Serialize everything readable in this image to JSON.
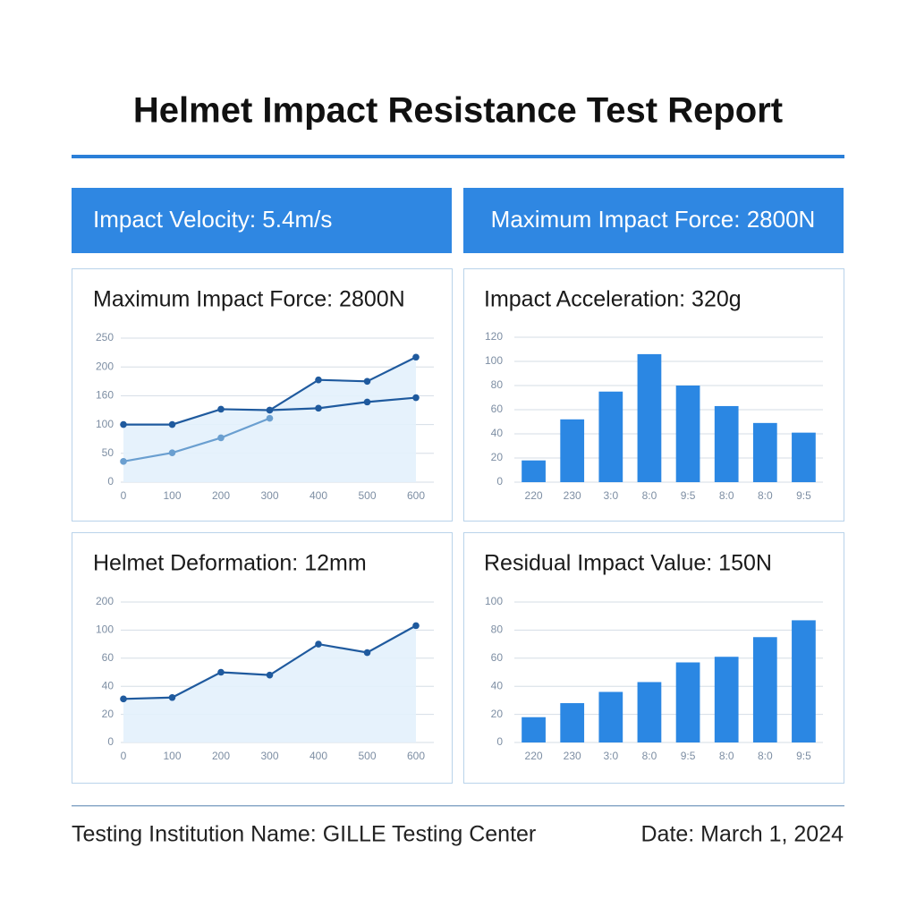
{
  "title": "Helmet Impact Resistance Test Report",
  "banners": [
    "Impact Velocity:  5.4m/s",
    "Maximum Impact Force: 2800N"
  ],
  "chart_data": [
    {
      "type": "line",
      "title": "Maximum Impact Force:  2800N",
      "x": [
        0,
        100,
        200,
        300,
        400,
        500,
        600
      ],
      "xlim": [
        0,
        600
      ],
      "xticks": [
        0,
        100,
        200,
        300,
        400,
        500,
        600
      ],
      "ylim": [
        0,
        250
      ],
      "yticks": [
        0,
        50,
        100,
        160,
        200,
        250
      ],
      "yscale": "tick-spaced",
      "grid": true,
      "series": [
        {
          "color": "#1f5a9e",
          "fill": "#e3f1fc",
          "values": [
            100,
            100,
            132,
            130,
            182,
            180,
            217
          ]
        },
        {
          "color": "#6a9fd0",
          "values": [
            36,
            51,
            77,
            113,
            null,
            null,
            null
          ]
        },
        {
          "color": "#1f5a9e",
          "values": [
            null,
            null,
            null,
            130,
            134,
            147,
            156
          ]
        }
      ]
    },
    {
      "type": "bar",
      "title": "Impact Acceleration:  320g",
      "categories": [
        "220",
        "230",
        "3:0",
        "8:0",
        "9:5",
        "8:0",
        "8:0",
        "9:5"
      ],
      "values": [
        18,
        52,
        75,
        106,
        80,
        63,
        49,
        41
      ],
      "color": "#2b87e3",
      "ylim": [
        0,
        120
      ],
      "yticks": [
        0,
        20,
        40,
        60,
        80,
        100,
        120
      ],
      "grid": true
    },
    {
      "type": "line",
      "title": "Helmet Deformation:  12mm",
      "x": [
        0,
        100,
        200,
        300,
        400,
        500,
        600
      ],
      "xlim": [
        0,
        600
      ],
      "xticks": [
        0,
        100,
        200,
        300,
        400,
        500,
        600
      ],
      "ylim": [
        0,
        200
      ],
      "yticks": [
        0,
        20,
        40,
        60,
        100,
        200
      ],
      "yscale": "tick-spaced",
      "grid": true,
      "series": [
        {
          "color": "#1f5a9e",
          "fill": "#e3f1fc",
          "values": [
            31,
            32,
            50,
            48,
            80,
            68,
            116
          ]
        }
      ]
    },
    {
      "type": "bar",
      "title": "Residual Impact Value: 150N",
      "categories": [
        "220",
        "230",
        "3:0",
        "8:0",
        "9:5",
        "8:0",
        "8:0",
        "9:5"
      ],
      "values": [
        18,
        28,
        36,
        43,
        57,
        61,
        75,
        87
      ],
      "color": "#2b87e3",
      "ylim": [
        0,
        100
      ],
      "yticks": [
        0,
        20,
        40,
        60,
        80,
        100
      ],
      "grid": true
    }
  ],
  "footer": {
    "institution": "Testing Institution Name: GILLE Testing Center",
    "date": "Date: March 1, 2024"
  }
}
